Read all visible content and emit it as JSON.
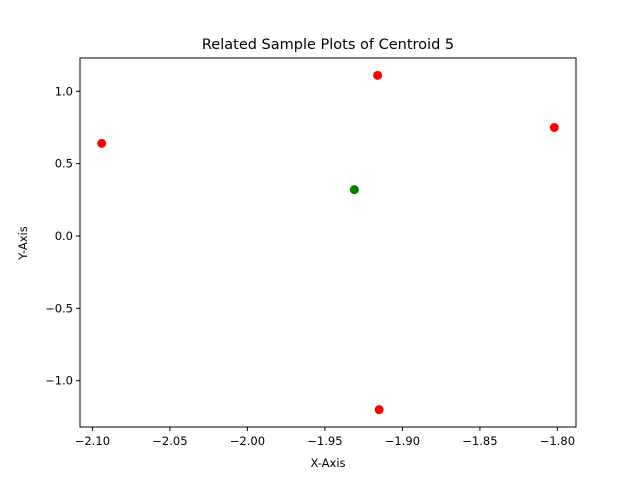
{
  "chart_data": {
    "type": "scatter",
    "title": "Related Sample Plots of Centroid 5",
    "xlabel": "X-Axis",
    "ylabel": "Y-Axis",
    "xlim": [
      -2.108,
      -1.788
    ],
    "ylim": [
      -1.32,
      1.23
    ],
    "grid": false,
    "xticks": [
      {
        "value": -2.1,
        "label": "−2.10"
      },
      {
        "value": -2.05,
        "label": "−2.05"
      },
      {
        "value": -2.0,
        "label": "−2.00"
      },
      {
        "value": -1.95,
        "label": "−1.95"
      },
      {
        "value": -1.9,
        "label": "−1.90"
      },
      {
        "value": -1.85,
        "label": "−1.85"
      },
      {
        "value": -1.8,
        "label": "−1.80"
      }
    ],
    "yticks": [
      {
        "value": -1.0,
        "label": "−1.0"
      },
      {
        "value": -0.5,
        "label": "−0.5"
      },
      {
        "value": 0.0,
        "label": "0.0"
      },
      {
        "value": 0.5,
        "label": "0.5"
      },
      {
        "value": 1.0,
        "label": "1.0"
      }
    ],
    "series": [
      {
        "color": "#ff0000",
        "x": [
          -2.094,
          -1.916,
          -1.802,
          -1.915
        ],
        "y": [
          0.64,
          1.11,
          0.75,
          -1.2
        ]
      },
      {
        "color": "#008000",
        "x": [
          -1.931
        ],
        "y": [
          0.32
        ]
      }
    ]
  }
}
